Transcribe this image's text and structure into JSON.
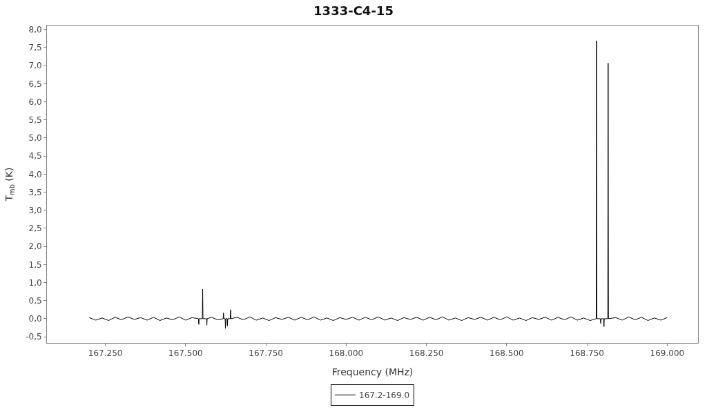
{
  "chart_data": {
    "type": "line",
    "title": "1333-C4-15",
    "xlabel": "Frequency (MHz)",
    "ylabel": "T$_{mb}$ (K)",
    "xlim": [
      167068,
      169096
    ],
    "ylim": [
      -0.67,
      8.11
    ],
    "xticks": [
      {
        "value": 167250,
        "label": "167.250"
      },
      {
        "value": 167500,
        "label": "167.500"
      },
      {
        "value": 167750,
        "label": "167.750"
      },
      {
        "value": 168000,
        "label": "168.000"
      },
      {
        "value": 168250,
        "label": "168.250"
      },
      {
        "value": 168500,
        "label": "168.500"
      },
      {
        "value": 168750,
        "label": "168.750"
      },
      {
        "value": 169000,
        "label": "169.000"
      }
    ],
    "yticks": [
      {
        "value": -0.5,
        "label": "-0,5"
      },
      {
        "value": 0,
        "label": "0,0"
      },
      {
        "value": 0.5,
        "label": "0,5"
      },
      {
        "value": 1,
        "label": "1,0"
      },
      {
        "value": 1.5,
        "label": "1,5"
      },
      {
        "value": 2,
        "label": "2,0"
      },
      {
        "value": 2.5,
        "label": "2,5"
      },
      {
        "value": 3,
        "label": "3,0"
      },
      {
        "value": 3.5,
        "label": "3,5"
      },
      {
        "value": 4,
        "label": "4,0"
      },
      {
        "value": 4.5,
        "label": "4,5"
      },
      {
        "value": 5,
        "label": "5,0"
      },
      {
        "value": 5.5,
        "label": "5,5"
      },
      {
        "value": 6,
        "label": "6,0"
      },
      {
        "value": 6.5,
        "label": "6,5"
      },
      {
        "value": 7,
        "label": "7,0"
      },
      {
        "value": 7.5,
        "label": "7,5"
      },
      {
        "value": 8,
        "label": "8,0"
      }
    ],
    "grid": false,
    "legend": "bottom",
    "marker": "none",
    "line_style": "solid",
    "series": [
      {
        "name": "167.2-169.0",
        "color": "#000000",
        "x": [
          167200,
          167220,
          167240,
          167260,
          167280,
          167300,
          167320,
          167340,
          167360,
          167380,
          167400,
          167420,
          167440,
          167460,
          167480,
          167500,
          167520,
          167540,
          167541,
          167542,
          167552,
          167553,
          167554,
          167565,
          167566,
          167567,
          167580,
          167600,
          167617,
          167618,
          167619,
          167623,
          167624,
          167625,
          167629,
          167630,
          167631,
          167639,
          167640,
          167641,
          167660,
          167680,
          167700,
          167720,
          167740,
          167760,
          167780,
          167800,
          167820,
          167840,
          167860,
          167880,
          167900,
          167920,
          167940,
          167960,
          167980,
          168000,
          168020,
          168040,
          168060,
          168080,
          168100,
          168120,
          168140,
          168160,
          168180,
          168200,
          168220,
          168240,
          168260,
          168280,
          168300,
          168320,
          168340,
          168360,
          168380,
          168400,
          168420,
          168440,
          168460,
          168480,
          168500,
          168520,
          168540,
          168560,
          168580,
          168600,
          168620,
          168640,
          168660,
          168680,
          168700,
          168720,
          168740,
          168760,
          168779,
          168780,
          168781,
          168792,
          168793,
          168794,
          168802,
          168803,
          168804,
          168815,
          168816,
          168817,
          168840,
          168860,
          168880,
          168900,
          168920,
          168940,
          168960,
          168980,
          169000
        ],
        "values": [
          0.03,
          -0.04,
          0.02,
          -0.05,
          0.04,
          -0.03,
          0.05,
          -0.02,
          0.03,
          -0.04,
          0.04,
          -0.05,
          0.02,
          -0.03,
          0.05,
          -0.04,
          0.03,
          0,
          -0.16,
          0,
          0,
          0.82,
          0,
          0,
          -0.18,
          0,
          0.04,
          -0.03,
          0,
          0.16,
          0,
          0,
          -0.27,
          0,
          0,
          -0.2,
          0,
          0,
          0.25,
          0,
          0.04,
          -0.03,
          0.05,
          -0.04,
          0.02,
          -0.05,
          0.03,
          -0.02,
          0.04,
          -0.04,
          0.04,
          -0.03,
          0.05,
          -0.04,
          0.02,
          -0.05,
          0.03,
          -0.02,
          0.04,
          -0.04,
          0.04,
          -0.03,
          0.05,
          -0.04,
          0.02,
          -0.05,
          0.03,
          -0.02,
          0.04,
          -0.04,
          0.04,
          -0.03,
          0.05,
          -0.04,
          0.02,
          -0.05,
          0.03,
          -0.02,
          0.04,
          -0.04,
          0.04,
          -0.03,
          0.05,
          -0.04,
          0.02,
          -0.05,
          0.03,
          -0.02,
          0.04,
          -0.04,
          0.04,
          -0.03,
          0.05,
          -0.04,
          0.02,
          -0.05,
          0,
          7.69,
          0,
          0,
          -0.13,
          0,
          0,
          -0.22,
          0,
          0,
          7.07,
          0,
          0.03,
          -0.04,
          0.05,
          -0.03,
          0.04,
          -0.05,
          0.02,
          -0.04,
          0.03
        ]
      }
    ]
  }
}
